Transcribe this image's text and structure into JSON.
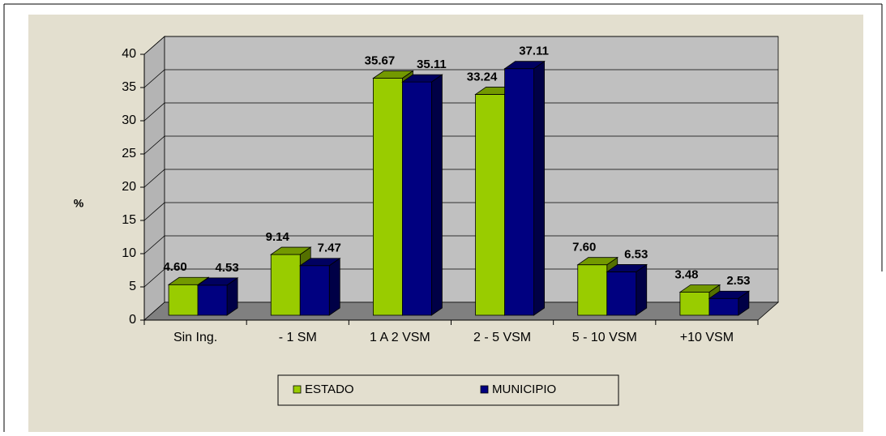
{
  "chart_data": {
    "type": "bar3d",
    "y_label": "%",
    "categories": [
      "Sin Ing.",
      "- 1 SM",
      "1 A 2 VSM",
      "2 - 5 VSM",
      "5 - 10 VSM",
      "+10 VSM"
    ],
    "series": [
      {
        "name": "ESTADO",
        "color": "#99cc00",
        "values": [
          4.6,
          9.14,
          35.67,
          33.24,
          7.6,
          3.48
        ],
        "value_labels": [
          "4.60",
          "9.14",
          "35.67",
          "33.24",
          "7.60",
          "3.48"
        ]
      },
      {
        "name": "MUNICIPIO",
        "color": "#000080",
        "values": [
          4.53,
          7.47,
          35.11,
          37.11,
          6.53,
          2.53
        ],
        "value_labels": [
          "4.53",
          "7.47",
          "35.11",
          "37.11",
          "6.53",
          "2.53"
        ]
      }
    ],
    "ylim": [
      0,
      40
    ],
    "yticks": [
      0,
      5,
      10,
      15,
      20,
      25,
      30,
      35,
      40
    ],
    "grid": true,
    "legend": "bottom"
  }
}
